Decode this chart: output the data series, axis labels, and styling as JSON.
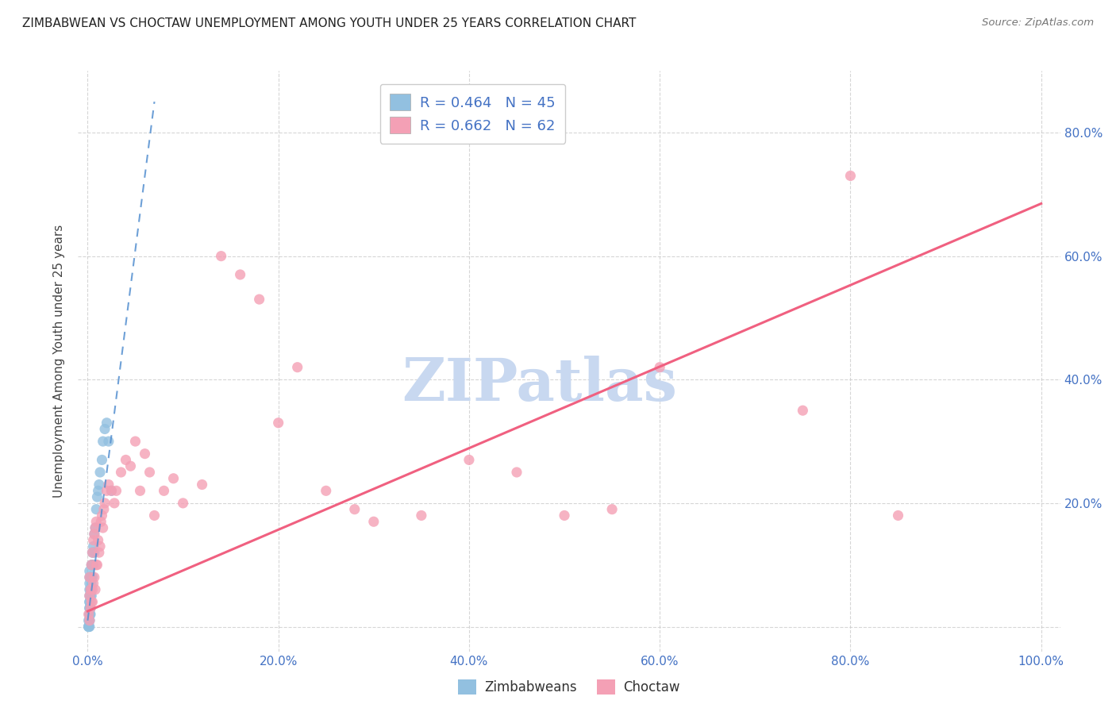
{
  "title": "ZIMBABWEAN VS CHOCTAW UNEMPLOYMENT AMONG YOUTH UNDER 25 YEARS CORRELATION CHART",
  "source": "Source: ZipAtlas.com",
  "ylabel": "Unemployment Among Youth under 25 years",
  "watermark": "ZIPatlas",
  "legend_blue_r": "R = 0.464",
  "legend_blue_n": "N = 45",
  "legend_pink_r": "R = 0.662",
  "legend_pink_n": "N = 62",
  "blue_color": "#92C0E0",
  "pink_color": "#F4A0B5",
  "blue_line_color": "#5590D0",
  "pink_line_color": "#F06080",
  "watermark_color": "#C8D8F0",
  "xlim": [
    -0.01,
    1.02
  ],
  "ylim": [
    -0.04,
    0.9
  ],
  "xticks": [
    0.0,
    0.2,
    0.4,
    0.6,
    0.8,
    1.0
  ],
  "yticks": [
    0.0,
    0.2,
    0.4,
    0.6,
    0.8
  ],
  "xticklabels": [
    "0.0%",
    "20.0%",
    "40.0%",
    "60.0%",
    "80.0%",
    "100.0%"
  ],
  "yticklabels_right": [
    "20.0%",
    "40.0%",
    "60.0%",
    "80.0%"
  ],
  "blue_scatter_x": [
    0.001,
    0.001,
    0.001,
    0.001,
    0.002,
    0.002,
    0.002,
    0.002,
    0.002,
    0.002,
    0.002,
    0.002,
    0.002,
    0.002,
    0.002,
    0.002,
    0.002,
    0.002,
    0.003,
    0.003,
    0.003,
    0.003,
    0.003,
    0.004,
    0.004,
    0.004,
    0.005,
    0.005,
    0.005,
    0.006,
    0.006,
    0.007,
    0.007,
    0.008,
    0.009,
    0.01,
    0.011,
    0.012,
    0.013,
    0.015,
    0.016,
    0.018,
    0.02,
    0.022,
    0.025
  ],
  "blue_scatter_y": [
    0.0,
    0.0,
    0.0,
    0.01,
    0.0,
    0.01,
    0.01,
    0.02,
    0.02,
    0.03,
    0.03,
    0.04,
    0.04,
    0.05,
    0.06,
    0.07,
    0.08,
    0.09,
    0.02,
    0.03,
    0.05,
    0.06,
    0.08,
    0.05,
    0.07,
    0.1,
    0.08,
    0.1,
    0.12,
    0.1,
    0.13,
    0.12,
    0.15,
    0.16,
    0.19,
    0.21,
    0.22,
    0.23,
    0.25,
    0.27,
    0.3,
    0.32,
    0.33,
    0.3,
    0.22
  ],
  "pink_scatter_x": [
    0.001,
    0.002,
    0.002,
    0.002,
    0.003,
    0.003,
    0.004,
    0.004,
    0.005,
    0.005,
    0.005,
    0.006,
    0.006,
    0.007,
    0.007,
    0.008,
    0.008,
    0.009,
    0.009,
    0.01,
    0.011,
    0.012,
    0.013,
    0.014,
    0.015,
    0.016,
    0.017,
    0.018,
    0.02,
    0.022,
    0.025,
    0.028,
    0.03,
    0.035,
    0.04,
    0.045,
    0.05,
    0.055,
    0.06,
    0.065,
    0.07,
    0.08,
    0.09,
    0.1,
    0.12,
    0.14,
    0.16,
    0.18,
    0.2,
    0.22,
    0.25,
    0.28,
    0.3,
    0.35,
    0.4,
    0.45,
    0.5,
    0.55,
    0.6,
    0.75,
    0.8,
    0.85
  ],
  "pink_scatter_y": [
    0.02,
    0.01,
    0.05,
    0.08,
    0.03,
    0.06,
    0.04,
    0.1,
    0.04,
    0.06,
    0.12,
    0.07,
    0.14,
    0.08,
    0.15,
    0.06,
    0.16,
    0.1,
    0.17,
    0.1,
    0.14,
    0.12,
    0.13,
    0.17,
    0.18,
    0.16,
    0.19,
    0.2,
    0.22,
    0.23,
    0.22,
    0.2,
    0.22,
    0.25,
    0.27,
    0.26,
    0.3,
    0.22,
    0.28,
    0.25,
    0.18,
    0.22,
    0.24,
    0.2,
    0.23,
    0.6,
    0.57,
    0.53,
    0.33,
    0.42,
    0.22,
    0.19,
    0.17,
    0.18,
    0.27,
    0.25,
    0.18,
    0.19,
    0.42,
    0.35,
    0.73,
    0.18
  ],
  "blue_trend_x": [
    0.0,
    0.07
  ],
  "blue_trend_y": [
    0.01,
    0.85
  ],
  "pink_trend_x": [
    0.0,
    1.0
  ],
  "pink_trend_y": [
    0.025,
    0.685
  ]
}
